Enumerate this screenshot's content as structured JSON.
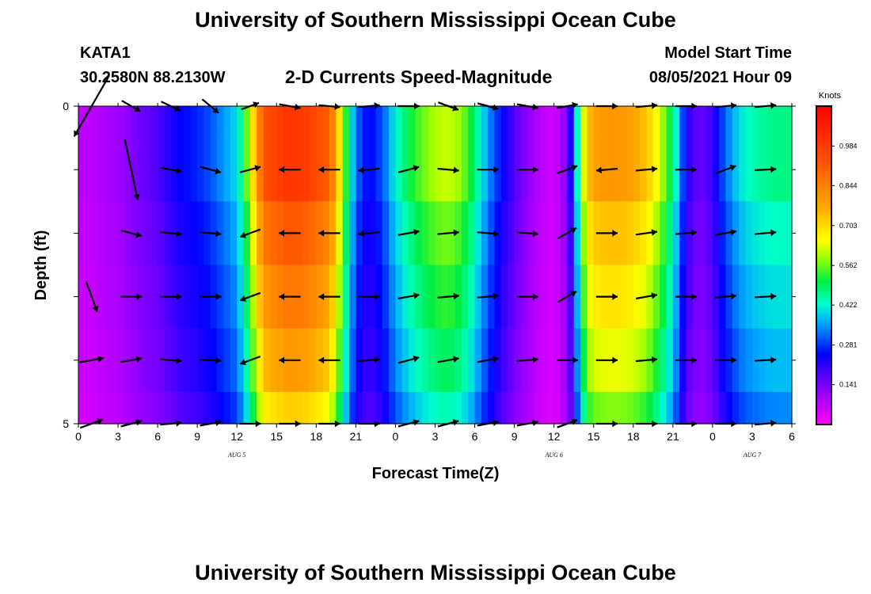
{
  "header": {
    "title": "University of Southern Mississippi Ocean Cube",
    "station_id": "KATA1",
    "station_coords": "30.2580N  88.2130W",
    "model_start_label": "Model Start Time",
    "model_start_time": "08/05/2021 Hour 09"
  },
  "footer": {
    "title": "University of Southern Mississippi Ocean Cube"
  },
  "chart_data": {
    "type": "heatmap",
    "title": "2-D Currents Speed-Magnitude",
    "xlabel": "Forecast Time(Z)",
    "ylabel": "Depth (ft)",
    "x_ticks": [
      "0",
      "3",
      "6",
      "9",
      "12",
      "15",
      "18",
      "21",
      "0",
      "3",
      "6",
      "9",
      "12",
      "15",
      "18",
      "21",
      "0",
      "3",
      "6"
    ],
    "date_labels": [
      {
        "label": "AUG 5",
        "hour": 12
      },
      {
        "label": "AUG 6",
        "hour": 36
      },
      {
        "label": "AUG 7",
        "hour": 51
      }
    ],
    "x_range_hours": [
      0,
      54
    ],
    "y_ticks": [
      "0",
      "5"
    ],
    "ylim": [
      0,
      5
    ],
    "depths": [
      0,
      1,
      2,
      3,
      4,
      5
    ],
    "colorbar": {
      "title": "Knots",
      "range": [
        0,
        1.125
      ],
      "ticks": [
        "0.141",
        "0.281",
        "0.422",
        "0.562",
        "0.703",
        "0.844",
        "0.984"
      ]
    },
    "speed_profile": {
      "hours": [
        0,
        1,
        2,
        3,
        4,
        5,
        6,
        7,
        8,
        9,
        10,
        11,
        12,
        12.5,
        13,
        13.5,
        14,
        15,
        16,
        17,
        18,
        19,
        19.5,
        20,
        20.5,
        21,
        22,
        23,
        24,
        25,
        26,
        27,
        28,
        29,
        30,
        31,
        32,
        33,
        34,
        35,
        36,
        36.5,
        37,
        37.5,
        38,
        38.5,
        39,
        40,
        41,
        42,
        43,
        44,
        45,
        45.5,
        46,
        47,
        48,
        49,
        50,
        51,
        52,
        53,
        54
      ],
      "surface": [
        0.07,
        0.07,
        0.09,
        0.1,
        0.13,
        0.16,
        0.18,
        0.22,
        0.25,
        0.27,
        0.3,
        0.35,
        0.4,
        0.5,
        0.62,
        0.78,
        0.93,
        0.97,
        1.0,
        0.99,
        0.95,
        0.9,
        0.78,
        0.6,
        0.45,
        0.32,
        0.24,
        0.3,
        0.42,
        0.5,
        0.56,
        0.6,
        0.62,
        0.58,
        0.48,
        0.35,
        0.25,
        0.18,
        0.12,
        0.07,
        0.05,
        0.08,
        0.14,
        0.3,
        0.55,
        0.72,
        0.78,
        0.8,
        0.8,
        0.78,
        0.73,
        0.62,
        0.48,
        0.36,
        0.22,
        0.15,
        0.2,
        0.32,
        0.4,
        0.44,
        0.46,
        0.47,
        0.47
      ],
      "scale": [
        1.0,
        1.0,
        0.92,
        0.86,
        0.8,
        0.72
      ]
    },
    "vectors": {
      "hours": [
        1,
        4,
        7,
        10,
        13,
        16,
        19,
        22,
        25,
        28,
        31,
        34,
        37,
        40,
        43,
        46,
        49,
        52
      ],
      "rows": [
        [
          [
            2.6,
            120
          ],
          [
            0.8,
            30
          ],
          [
            0.8,
            25
          ],
          [
            0.8,
            40
          ],
          [
            0.7,
            -20
          ],
          [
            0.8,
            10
          ],
          [
            0.8,
            5
          ],
          [
            0.8,
            -5
          ],
          [
            0.8,
            0
          ],
          [
            0.8,
            20
          ],
          [
            0.8,
            15
          ],
          [
            0.8,
            10
          ],
          [
            0.8,
            -10
          ],
          [
            0.8,
            0
          ],
          [
            0.8,
            -5
          ],
          [
            0.8,
            0
          ],
          [
            0.8,
            -5
          ],
          [
            0.8,
            -5
          ]
        ],
        [
          [
            0,
            0
          ],
          [
            2.3,
            78
          ],
          [
            0.8,
            10
          ],
          [
            0.8,
            15
          ],
          [
            0.8,
            -15
          ],
          [
            0.8,
            180
          ],
          [
            0.8,
            180
          ],
          [
            0.8,
            175
          ],
          [
            0.8,
            -15
          ],
          [
            0.8,
            5
          ],
          [
            0.8,
            0
          ],
          [
            0.8,
            0
          ],
          [
            0.8,
            -20
          ],
          [
            0.8,
            175
          ],
          [
            0.8,
            -5
          ],
          [
            0.8,
            0
          ],
          [
            0.8,
            -20
          ],
          [
            0.8,
            -3
          ]
        ],
        [
          [
            0,
            0
          ],
          [
            0.8,
            15
          ],
          [
            0.8,
            5
          ],
          [
            0.8,
            5
          ],
          [
            0.8,
            160
          ],
          [
            0.8,
            180
          ],
          [
            0.8,
            180
          ],
          [
            0.8,
            175
          ],
          [
            0.8,
            -10
          ],
          [
            0.8,
            -5
          ],
          [
            0.8,
            5
          ],
          [
            0.8,
            5
          ],
          [
            0.8,
            -30
          ],
          [
            0.8,
            0
          ],
          [
            0.8,
            -8
          ],
          [
            0.8,
            -5
          ],
          [
            0.8,
            -10
          ],
          [
            0.8,
            -5
          ]
        ],
        [
          [
            1.2,
            70
          ],
          [
            0.8,
            0
          ],
          [
            0.8,
            0
          ],
          [
            0.8,
            0
          ],
          [
            0.8,
            160
          ],
          [
            0.8,
            180
          ],
          [
            0.8,
            180
          ],
          [
            0.8,
            0
          ],
          [
            0.8,
            -10
          ],
          [
            0.8,
            -5
          ],
          [
            0.8,
            -5
          ],
          [
            0.8,
            0
          ],
          [
            0.8,
            -30
          ],
          [
            0.8,
            0
          ],
          [
            0.8,
            -10
          ],
          [
            0.8,
            0
          ],
          [
            0.8,
            -5
          ],
          [
            0.8,
            -3
          ]
        ],
        [
          [
            0.9,
            -10
          ],
          [
            0.8,
            -10
          ],
          [
            0.8,
            5
          ],
          [
            0.8,
            3
          ],
          [
            0.8,
            160
          ],
          [
            0.8,
            180
          ],
          [
            0.8,
            180
          ],
          [
            0.8,
            -5
          ],
          [
            0.8,
            -15
          ],
          [
            0.8,
            -10
          ],
          [
            0.8,
            -10
          ],
          [
            0.8,
            -5
          ],
          [
            0.8,
            0
          ],
          [
            0.8,
            0
          ],
          [
            0.8,
            -5
          ],
          [
            0.8,
            0
          ],
          [
            0.8,
            0
          ],
          [
            0.8,
            -3
          ]
        ],
        [
          [
            0.9,
            -20
          ],
          [
            0.8,
            -15
          ],
          [
            0.8,
            -5
          ],
          [
            0.8,
            -10
          ],
          [
            0.8,
            0
          ],
          [
            0.8,
            0
          ],
          [
            0.8,
            0
          ],
          [
            0.8,
            0
          ],
          [
            0.8,
            -15
          ],
          [
            0.8,
            -15
          ],
          [
            0.8,
            -10
          ],
          [
            0.8,
            -10
          ],
          [
            0.8,
            -20
          ],
          [
            0.8,
            0
          ],
          [
            0.8,
            0
          ],
          [
            0.8,
            0
          ],
          [
            0.8,
            0
          ],
          [
            0.8,
            -5
          ]
        ]
      ]
    }
  }
}
